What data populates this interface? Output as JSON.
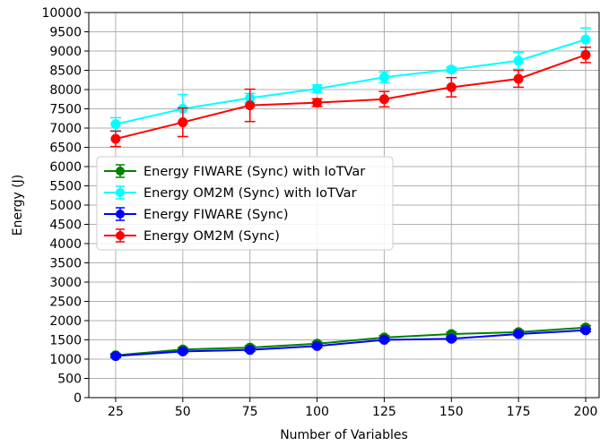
{
  "chart_data": {
    "type": "line",
    "title": "",
    "xlabel": "Number of Variables",
    "ylabel": "Energy (J)",
    "x": [
      25,
      50,
      75,
      100,
      125,
      150,
      175,
      200
    ],
    "xlim": [
      15,
      205
    ],
    "ylim": [
      0,
      10000
    ],
    "xticks": [
      "25",
      "50",
      "75",
      "100",
      "125",
      "150",
      "175",
      "200"
    ],
    "yticks": [
      "0",
      "500",
      "1000",
      "1500",
      "2000",
      "2500",
      "3000",
      "3500",
      "4000",
      "4500",
      "5000",
      "5500",
      "6000",
      "6500",
      "7000",
      "7500",
      "8000",
      "8500",
      "9000",
      "9500",
      "10000"
    ],
    "grid": true,
    "legend_position": "center-left",
    "series": [
      {
        "name": "Energy FIWARE (Sync) with IoTVar",
        "color": "#008000",
        "values": [
          1100,
          1250,
          1300,
          1400,
          1560,
          1650,
          1700,
          1820
        ],
        "errors": [
          40,
          50,
          50,
          50,
          50,
          50,
          50,
          50
        ]
      },
      {
        "name": "Energy OM2M (Sync) with IoTVar",
        "color": "#00ffff",
        "values": [
          7100,
          7500,
          7780,
          8020,
          8320,
          8520,
          8750,
          9300
        ],
        "errors": [
          170,
          370,
          120,
          100,
          140,
          60,
          220,
          300
        ]
      },
      {
        "name": "Energy FIWARE (Sync)",
        "color": "#0000ff",
        "values": [
          1080,
          1200,
          1240,
          1340,
          1500,
          1530,
          1650,
          1750
        ],
        "errors": [
          40,
          40,
          40,
          40,
          40,
          40,
          40,
          40
        ]
      },
      {
        "name": "Energy OM2M (Sync)",
        "color": "#ff0000",
        "values": [
          6720,
          7150,
          7590,
          7660,
          7750,
          8060,
          8280,
          8900
        ],
        "errors": [
          200,
          370,
          420,
          100,
          200,
          250,
          220,
          200
        ]
      }
    ]
  }
}
